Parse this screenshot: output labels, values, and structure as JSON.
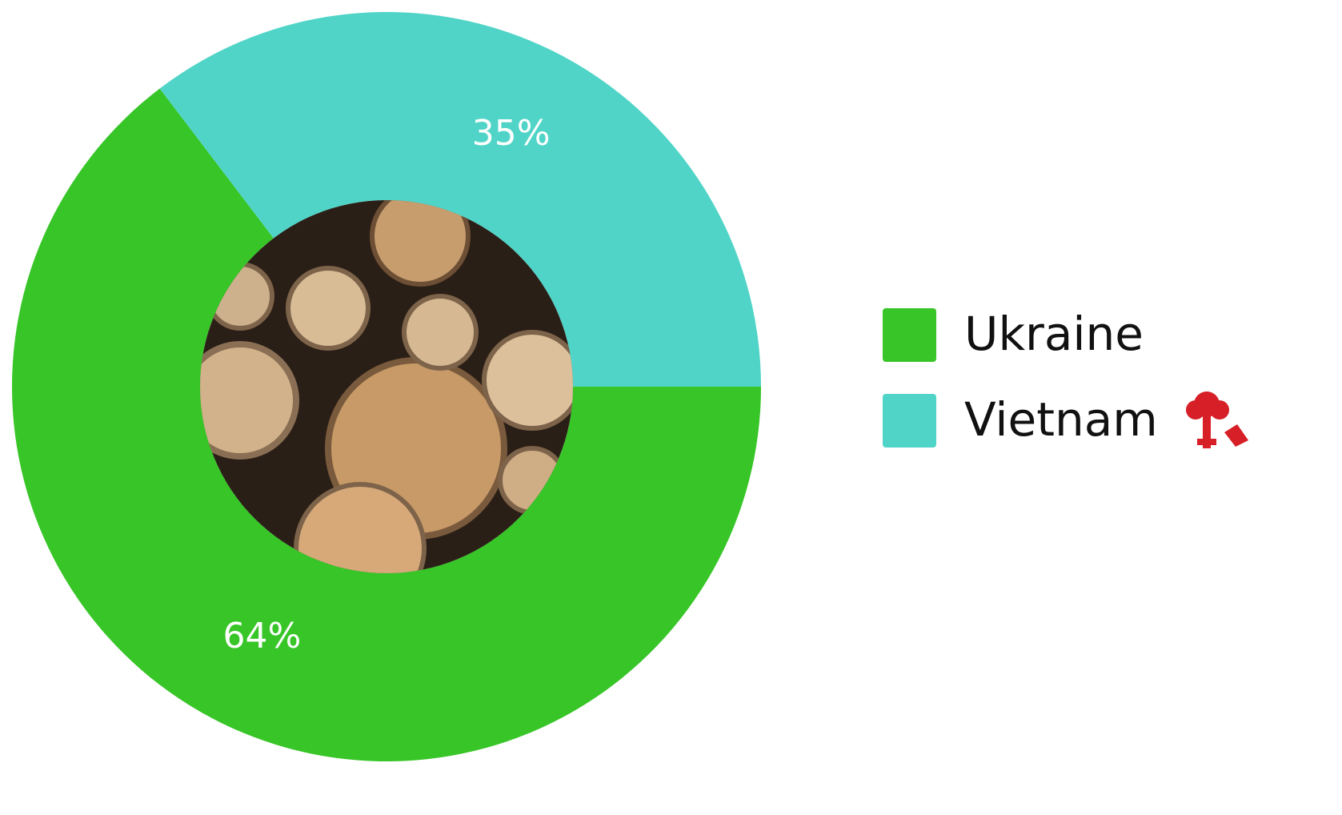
{
  "chart_data": {
    "type": "donut",
    "categories": [
      "Ukraine",
      "Vietnam"
    ],
    "values": [
      64,
      35
    ],
    "value_labels": [
      "64%",
      "35%"
    ],
    "colors": [
      "#37c527",
      "#50d4c7"
    ],
    "legend": "right"
  }
}
